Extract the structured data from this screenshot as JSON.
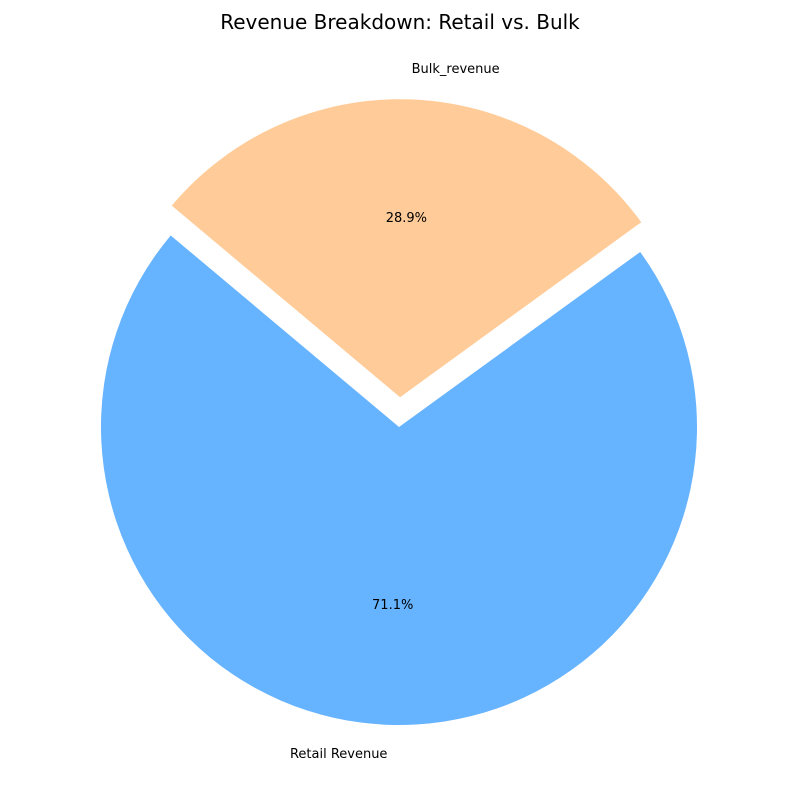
{
  "chart_data": {
    "type": "pie",
    "title": "Revenue Breakdown: Retail vs. Bulk",
    "start_angle": 140,
    "direction": "counterclockwise",
    "slices": [
      {
        "label": "Retail Revenue",
        "percent_label": "71.1%",
        "value": 71.1,
        "color": "#66b3ff",
        "explode": 0
      },
      {
        "label": "Bulk_revenue",
        "percent_label": "28.9%",
        "value": 28.9,
        "color": "#ffcc99",
        "explode": 0.1
      }
    ]
  }
}
